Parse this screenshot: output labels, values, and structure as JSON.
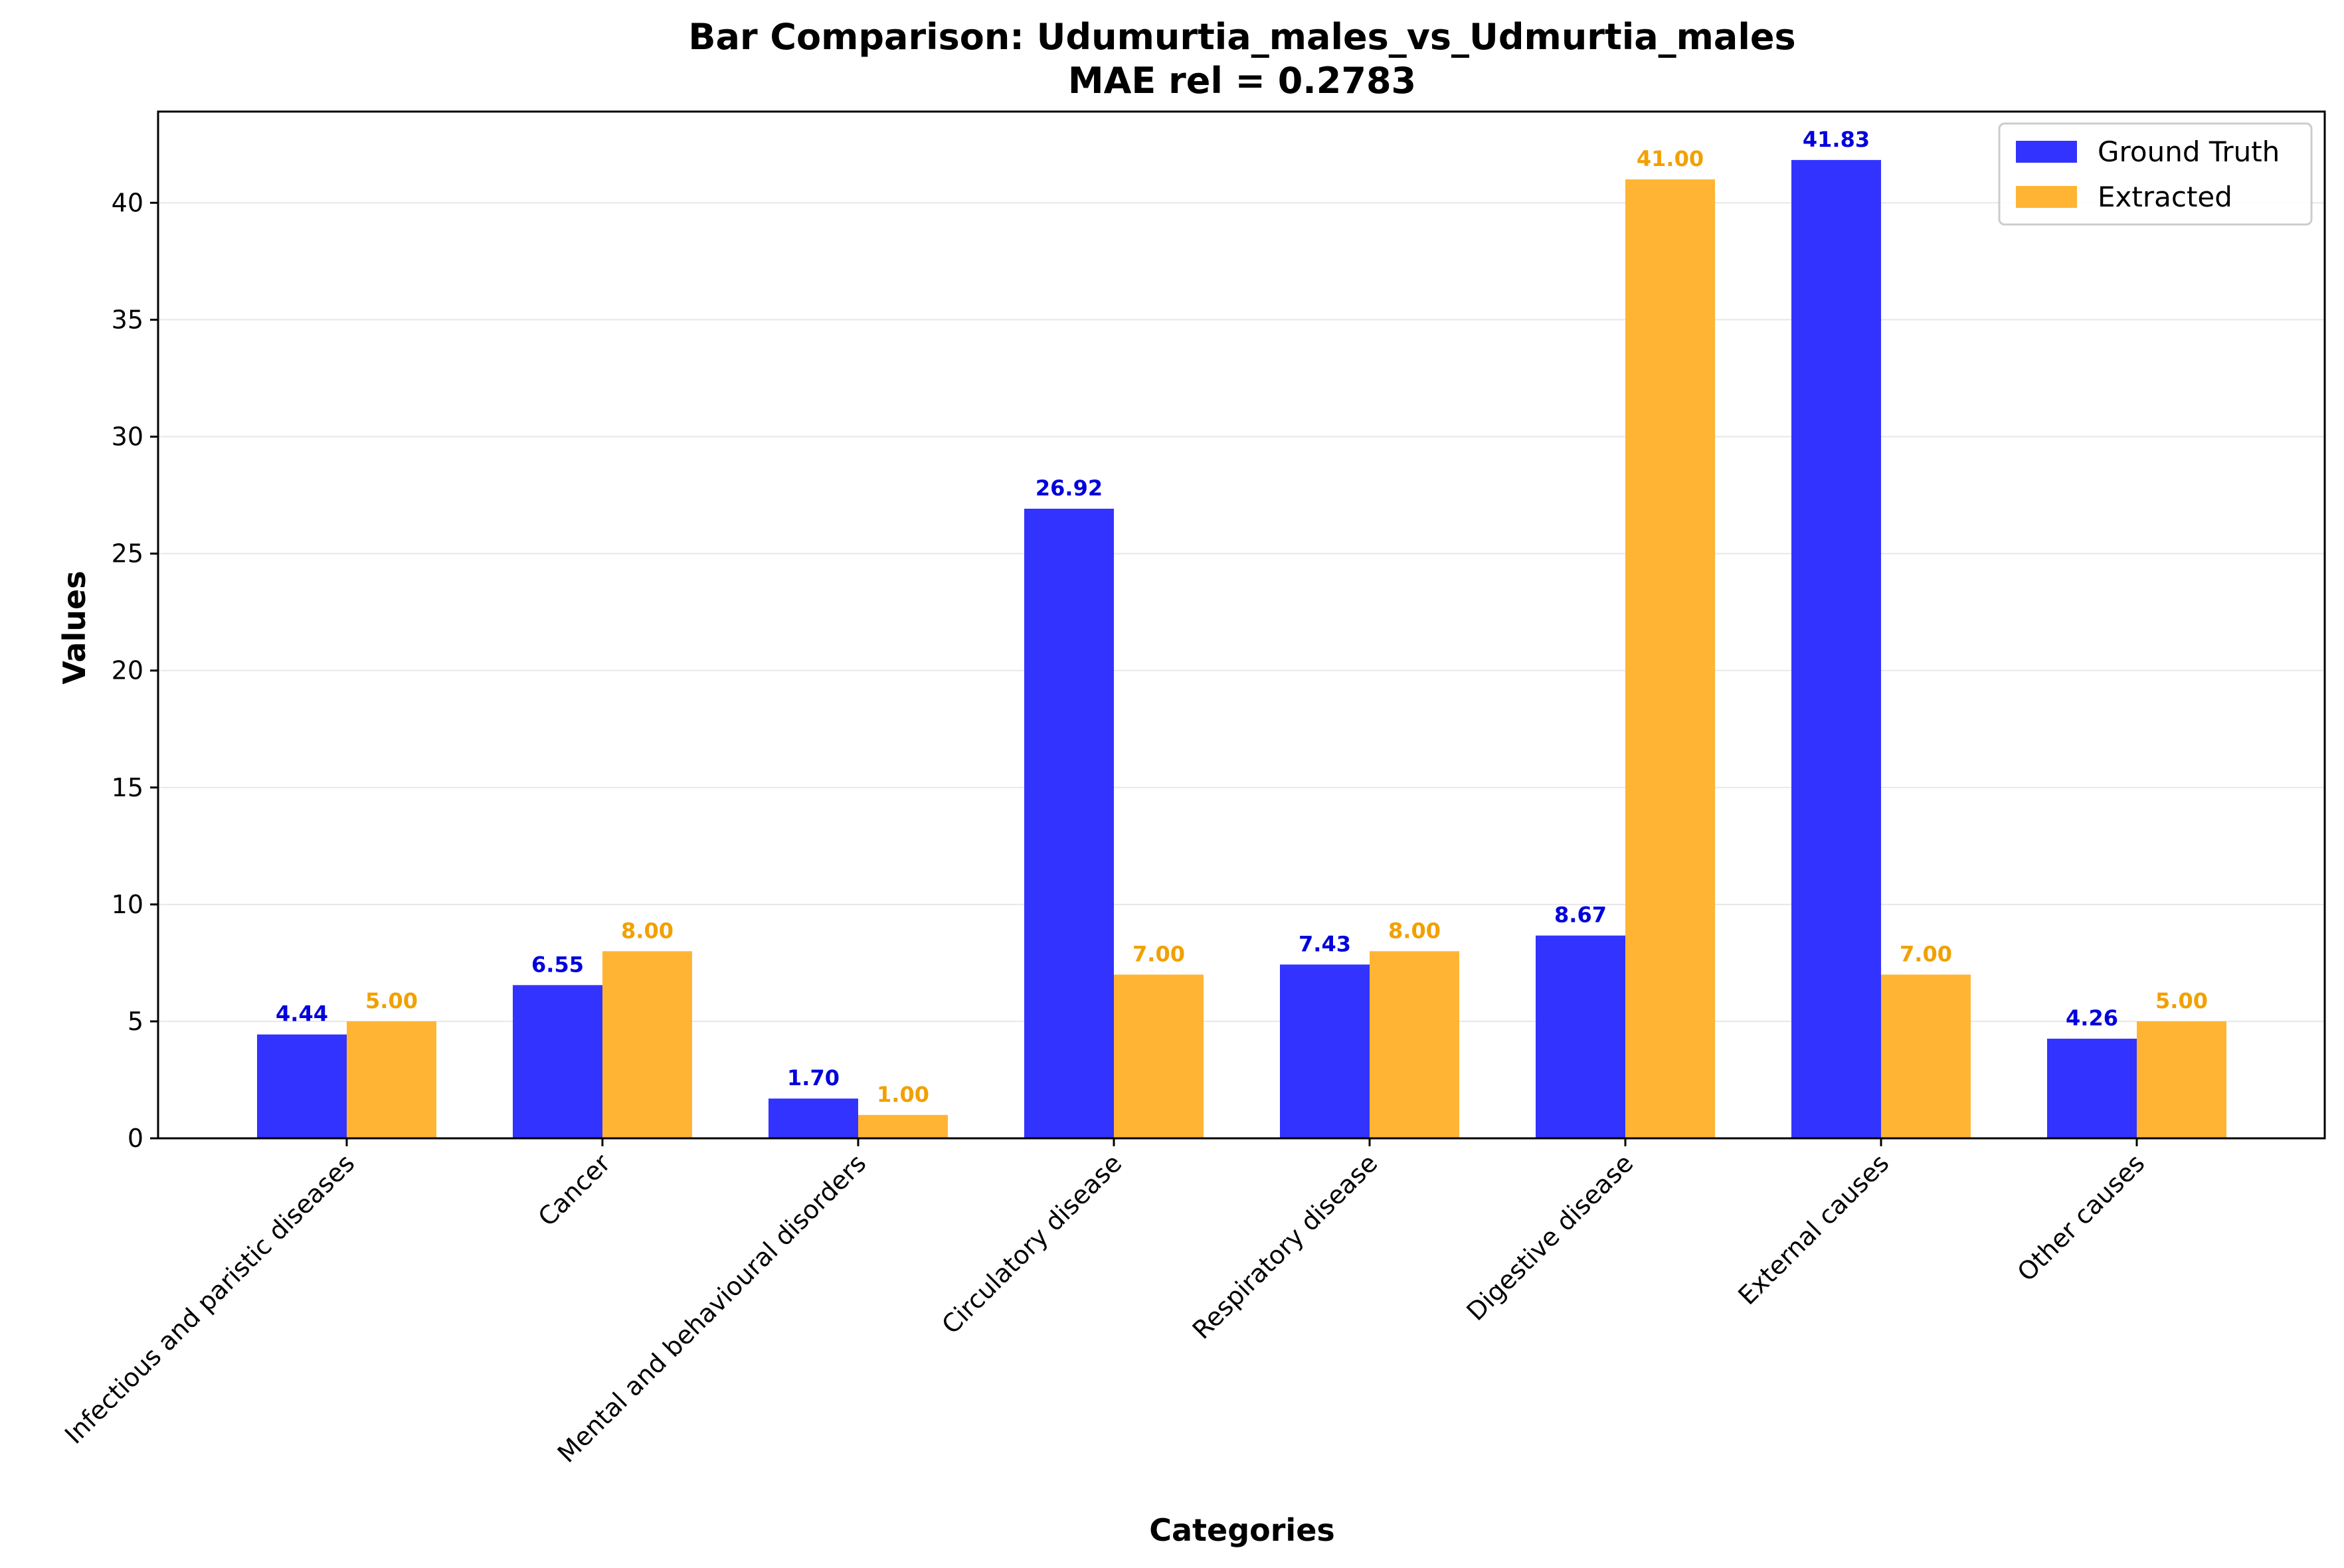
{
  "chart_data": {
    "type": "bar",
    "title": "Bar Comparison: Udumurtia_males_vs_Udmurtia_males",
    "subtitle": "MAE rel = 0.2783",
    "xlabel": "Categories",
    "ylabel": "Values",
    "ylim": [
      0,
      43.9
    ],
    "yticks": [
      0,
      5,
      10,
      15,
      20,
      25,
      30,
      35,
      40
    ],
    "grid": true,
    "legend_position": "top-right",
    "categories": [
      "Infectious and paristic diseases",
      "Cancer",
      "Mental and behavioural disorders",
      "Circulatory disease",
      "Respiratory disease",
      "Digestive disease",
      "External causes",
      "Other causes"
    ],
    "series": [
      {
        "name": "Ground Truth",
        "color": "#3333ff",
        "label_color": "#0000dd",
        "values": [
          4.44,
          6.55,
          1.7,
          26.92,
          7.43,
          8.67,
          41.83,
          4.26
        ],
        "labels": [
          "4.44",
          "6.55",
          "1.70",
          "26.92",
          "7.43",
          "8.67",
          "41.83",
          "4.26"
        ]
      },
      {
        "name": "Extracted",
        "color": "#ffb533",
        "label_color": "#f2a000",
        "values": [
          5.0,
          8.0,
          1.0,
          7.0,
          8.0,
          41.0,
          7.0,
          5.0
        ],
        "labels": [
          "5.00",
          "8.00",
          "1.00",
          "7.00",
          "8.00",
          "41.00",
          "7.00",
          "5.00"
        ]
      }
    ]
  }
}
